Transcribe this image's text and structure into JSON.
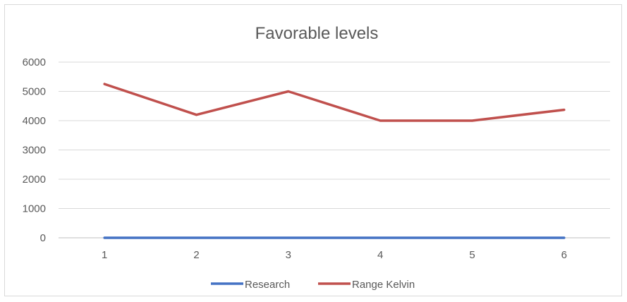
{
  "chart_data": {
    "type": "line",
    "title": "Favorable levels",
    "x": [
      1,
      2,
      3,
      4,
      5,
      6
    ],
    "ylim": [
      0,
      6000
    ],
    "yticks": [
      0,
      1000,
      2000,
      3000,
      4000,
      5000,
      6000
    ],
    "grid": true,
    "legend_position": "bottom",
    "series": [
      {
        "name": "Research",
        "color": "#4472c4",
        "values": [
          0,
          0,
          0,
          0,
          0,
          0
        ]
      },
      {
        "name": "Range Kelvin",
        "color": "#c0504d",
        "values": [
          5250,
          4200,
          5000,
          4000,
          4000,
          4370
        ]
      }
    ]
  }
}
